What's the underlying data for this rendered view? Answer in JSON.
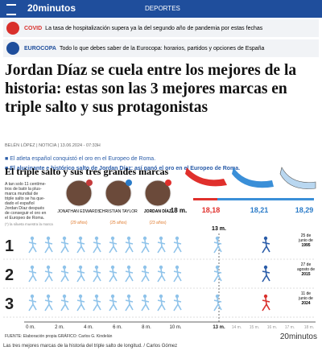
{
  "header": {
    "logo": "20minutos",
    "section": "DEPORTES"
  },
  "alerts": [
    {
      "tag": "COVID",
      "text": "La tasa de hospitalización supera ya la del segundo año de pandemia por estas fechas"
    },
    {
      "tag": "EUROCOPA",
      "text": "Todo lo que debes saber de la Eurocopa: horarios, partidos y opciones de España"
    }
  ],
  "article": {
    "headline": "Jordan Díaz se cuela entre los mejores de la historia: estas son las 3 mejores marcas en triple salto y sus protagonistas",
    "byline": "BELÉN LÓPEZ | NOTICIA | 13.06.2024 - 07:33H",
    "bullets": [
      "El atleta español conquistó el oro en el Europeo de Roma.",
      "El alucinante e histórico salto de Jordan Díaz: así ganó el oro en el Europeo de Roma."
    ]
  },
  "graphic": {
    "title": "El triple salto y sus tres grandes marcas",
    "intro": [
      "A tan solo 11 centíme-",
      "tros de batir la plus-",
      "marca mundial de",
      "triple salto se ha que-",
      "dado el español",
      "Jordan Díaz después",
      "de conseguir el oro en",
      "el Europeo de Roma."
    ],
    "note": "(*) la silueta muestra la marca",
    "athletes": [
      {
        "name": "JONATHAN EDWARDS",
        "age": "(29 años)"
      },
      {
        "name": "CHRISTIAN TAYLOR",
        "age": "(25 años)"
      },
      {
        "name": "JORDAN DÍAZ",
        "age": "(23 años)"
      }
    ],
    "marks": {
      "start": "18 m.",
      "values": [
        "18,18",
        "18,21",
        "18,29"
      ]
    },
    "top_mark": "13 m.",
    "rows": [
      {
        "number": "1",
        "date": [
          "25 de",
          "junio de",
          "1995"
        ]
      },
      {
        "number": "2",
        "date": [
          "27 de",
          "agosto de",
          "2015"
        ]
      },
      {
        "number": "3",
        "date": [
          "11 de",
          "junio de",
          "2024"
        ]
      }
    ],
    "axis": [
      "0 m.",
      "2 m.",
      "4 m.",
      "6 m.",
      "8 m.",
      "10 m.",
      "13 m.",
      "14 m.",
      "15 m.",
      "16 m.",
      "17 m.",
      "18 m."
    ],
    "source": "FUENTE: Elaboración propia  GRÁFICO: Carlos G. Kindelán",
    "brand": "20minutos"
  },
  "caption": "Las tres mejores marcas de la historia del triple salto de longitud. / Carlos Gómez"
}
